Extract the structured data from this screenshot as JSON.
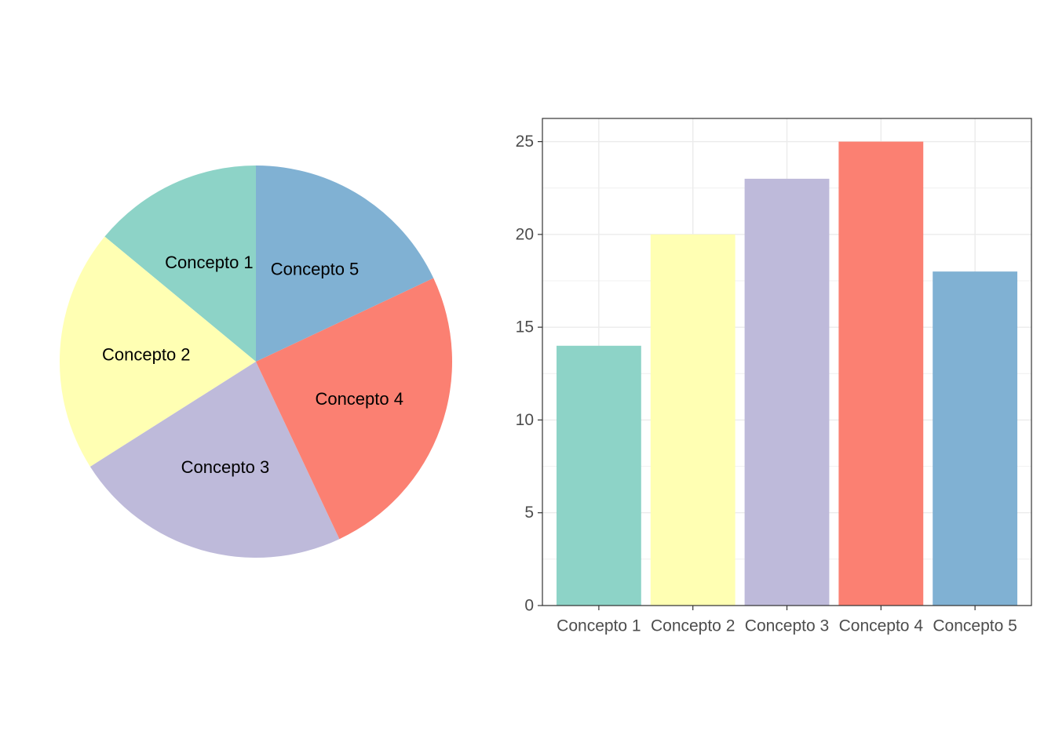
{
  "chart_data": [
    {
      "type": "pie",
      "labels": [
        "Concepto 1",
        "Concepto 2",
        "Concepto 3",
        "Concepto 4",
        "Concepto 5"
      ],
      "values": [
        14,
        20,
        23,
        25,
        18
      ],
      "colors": [
        "#8DD3C7",
        "#FFFFB3",
        "#BEBADA",
        "#FB8072",
        "#80B1D3"
      ],
      "start": "12 o'clock",
      "direction": "counterclockwise"
    },
    {
      "type": "bar",
      "categories": [
        "Concepto 1",
        "Concepto 2",
        "Concepto 3",
        "Concepto 4",
        "Concepto 5"
      ],
      "values": [
        14,
        20,
        23,
        25,
        18
      ],
      "colors": [
        "#8DD3C7",
        "#FFFFB3",
        "#BEBADA",
        "#FB8072",
        "#80B1D3"
      ],
      "ylim": [
        0,
        26.25
      ],
      "yticks": [
        0,
        5,
        10,
        15,
        20,
        25
      ],
      "xlabel": "",
      "ylabel": "",
      "grid": true,
      "panel_border": true
    }
  ]
}
